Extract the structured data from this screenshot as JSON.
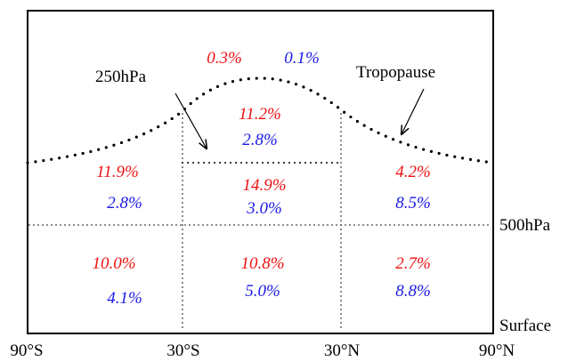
{
  "labels": {
    "label_250hpa": "250hPa",
    "tropopause": "Tropopause",
    "label_500hpa": "500hPa",
    "surface": "Surface"
  },
  "x_axis": [
    "90°S",
    "30°S",
    "30°N",
    "90°N"
  ],
  "colors": {
    "red": "#ee1111",
    "blue": "#1a1ae6"
  },
  "cells": {
    "top_stratosphere": {
      "red": "0.3%",
      "blue": "0.1%"
    },
    "tropics_upper": {
      "red": "11.2%",
      "blue": "2.8%"
    },
    "south_mid": {
      "red": "11.9%",
      "blue": "2.8%"
    },
    "tropics_mid": {
      "red": "14.9%",
      "blue": "3.0%"
    },
    "north_mid": {
      "red": "4.2%",
      "blue": "8.5%"
    },
    "south_low": {
      "red": "10.0%",
      "blue": "4.1%"
    },
    "tropics_low": {
      "red": "10.8%",
      "blue": "5.0%"
    },
    "north_low": {
      "red": "2.7%",
      "blue": "8.8%"
    }
  }
}
